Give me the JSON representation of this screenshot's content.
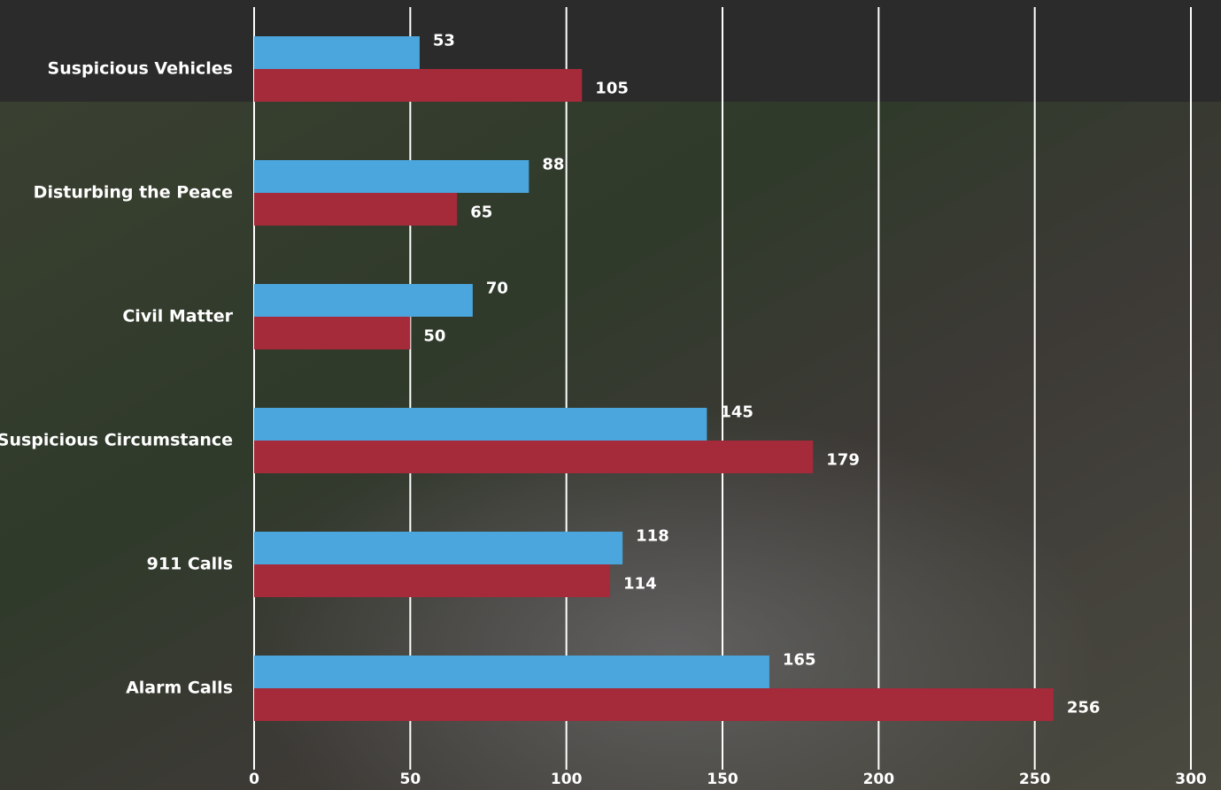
{
  "chart_data": {
    "type": "hbar",
    "categories": [
      "Suspicious Vehicles",
      "Disturbing the Peace",
      "Civil Matter",
      "Suspicious Circumstance",
      "911 Calls",
      "Alarm Calls"
    ],
    "series": [
      {
        "color": "#4aa6dd",
        "values": [
          53,
          88,
          70,
          145,
          118,
          165
        ]
      },
      {
        "color": "#a52a3a",
        "values": [
          105,
          65,
          50,
          179,
          114,
          256
        ]
      }
    ],
    "xlim": [
      0,
      300
    ],
    "xticks": [
      0,
      50,
      100,
      150,
      200,
      250,
      300
    ],
    "grid": true
  }
}
